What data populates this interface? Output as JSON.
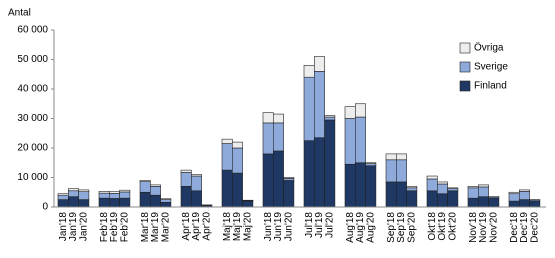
{
  "chart_data": {
    "type": "stacked-bar",
    "y_label": "Antal",
    "categories": [
      "Jan'18",
      "Jan'19",
      "Jan'20",
      "Feb'18",
      "Feb'19",
      "Feb'20",
      "Mar'18",
      "Mar'19",
      "Mar'20",
      "Apr'18",
      "Apr'19",
      "Apr'20",
      "Maj'18",
      "Maj'19",
      "Maj'20",
      "Jun'18",
      "Jun'19",
      "Jun'20",
      "Jul'18",
      "Jul'19",
      "Jul'20",
      "Aug'18",
      "Aug'19",
      "Aug'20",
      "Sep'18",
      "Sep'19",
      "Sep'20",
      "Okt'18",
      "Okt'19",
      "Okt'20",
      "Nov'18",
      "Nov'19",
      "Nov'20",
      "Dec'18",
      "Dec'19",
      "Dec'20"
    ],
    "series": [
      {
        "name": "Finland",
        "color": "#1f3864",
        "values": [
          2500,
          3500,
          2500,
          3000,
          2900,
          3000,
          5000,
          4000,
          1600,
          7000,
          5500,
          500,
          12500,
          11500,
          2000,
          18000,
          19000,
          9000,
          22500,
          23500,
          29500,
          14500,
          15000,
          14000,
          8500,
          8500,
          5500,
          5500,
          4500,
          5500,
          3000,
          3500,
          3000,
          2000,
          2500,
          2000
        ]
      },
      {
        "name": "Sverige",
        "color": "#8eaadb",
        "values": [
          1500,
          2000,
          2700,
          1700,
          1700,
          2100,
          3600,
          3000,
          900,
          4700,
          5000,
          150,
          9000,
          8500,
          200,
          10500,
          9500,
          700,
          21500,
          22500,
          1000,
          15500,
          15500,
          700,
          7500,
          7500,
          1000,
          4000,
          3300,
          700,
          3500,
          3300,
          400,
          2500,
          2800,
          400
        ]
      },
      {
        "name": "Övriga",
        "color": "#ededed",
        "values": [
          500,
          700,
          600,
          600,
          600,
          600,
          400,
          500,
          300,
          800,
          500,
          50,
          1500,
          2000,
          100,
          3500,
          3000,
          300,
          4000,
          5000,
          500,
          4000,
          4500,
          300,
          2000,
          2000,
          500,
          1000,
          700,
          300,
          500,
          700,
          100,
          500,
          500,
          100
        ]
      }
    ],
    "ylim": [
      0,
      60000
    ],
    "yticks": [
      0,
      {
        "value": 10000,
        "label": "10 000"
      },
      {
        "value": 20000,
        "label": "20 000"
      },
      {
        "value": 30000,
        "label": "30 000"
      },
      {
        "value": 40000,
        "label": "40 000"
      },
      {
        "value": 50000,
        "label": "50 000"
      },
      {
        "value": 60000,
        "label": "60 000"
      }
    ],
    "grid": false,
    "legend": "top-right"
  }
}
